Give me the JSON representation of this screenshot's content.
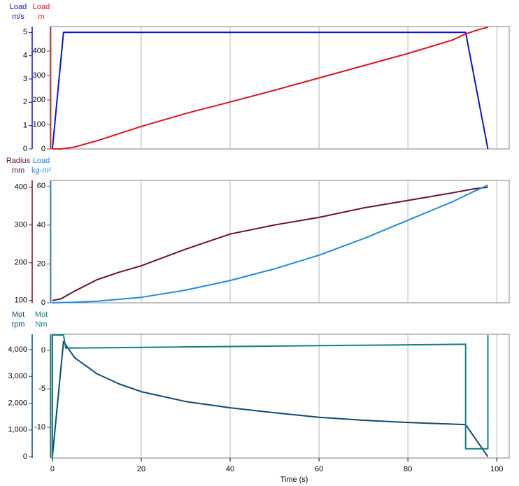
{
  "chart_data": [
    {
      "type": "line",
      "xlim": [
        -0.3,
        102.8
      ],
      "xticks": [
        0,
        20,
        40,
        60,
        80,
        100
      ],
      "grid": true,
      "ylabel": [
        "Load",
        "m/s"
      ],
      "ylim": [
        0,
        5.25
      ],
      "yticks": [
        0,
        1,
        2,
        3,
        4,
        5
      ],
      "y2label": [
        "Load",
        "m"
      ],
      "y2lim": [
        0,
        500
      ],
      "y2ticks": [
        0,
        100,
        200,
        300,
        400
      ],
      "series": [
        {
          "color": "#0a14d6",
          "axis": "y",
          "x": [
            0,
            2.5,
            93,
            98
          ],
          "values": [
            0,
            5,
            5,
            0
          ]
        },
        {
          "color": "#e0141e",
          "axis": "y2",
          "x": [
            0,
            2,
            5,
            10,
            20,
            30,
            40,
            50,
            60,
            70,
            80,
            90,
            93,
            96,
            98
          ],
          "values": [
            0,
            0,
            8,
            33,
            92,
            145,
            192,
            240,
            290,
            340,
            390,
            445,
            470,
            488,
            497
          ]
        }
      ]
    },
    {
      "type": "line",
      "xlim": [
        -0.3,
        102.8
      ],
      "xticks": [
        0,
        20,
        40,
        60,
        80,
        100
      ],
      "grid": true,
      "ylabel": [
        "Radius",
        "mm"
      ],
      "ylim": [
        94,
        418
      ],
      "yticks": [
        100,
        200,
        300,
        400
      ],
      "y2label": [
        "Load",
        "kg-m²"
      ],
      "y2lim": [
        0,
        63
      ],
      "y2ticks": [
        0,
        20,
        40,
        60
      ],
      "series": [
        {
          "color": "#6b0f3f",
          "axis": "y",
          "x": [
            0,
            2,
            5,
            10,
            15,
            20,
            30,
            40,
            50,
            60,
            70,
            80,
            90,
            95,
            98
          ],
          "values": [
            100,
            105,
            125,
            155,
            175,
            192,
            236,
            276,
            300,
            320,
            345,
            365,
            385,
            396,
            400
          ]
        },
        {
          "color": "#1e8ce0",
          "axis": "y2",
          "x": [
            0,
            5,
            10,
            20,
            30,
            40,
            50,
            60,
            70,
            80,
            90,
            95,
            98
          ],
          "values": [
            0,
            0.3,
            0.8,
            2.8,
            6.5,
            11.5,
            17.5,
            24.5,
            33,
            42.5,
            52,
            57.5,
            60.5
          ]
        }
      ]
    },
    {
      "type": "line",
      "xlim": [
        -0.3,
        102.8
      ],
      "xticks": [
        0,
        20,
        40,
        60,
        80,
        100
      ],
      "grid": true,
      "xlabel": "Time (s)",
      "ylabel": [
        "Mot",
        "rpm"
      ],
      "ylim": [
        -50,
        4575
      ],
      "yticks": [
        0,
        {
          "value": 1000,
          "label": "1,000"
        },
        {
          "value": 2000,
          "label": "2,000"
        },
        {
          "value": 3000,
          "label": "3,000"
        },
        {
          "value": 4000,
          "label": "4,000"
        }
      ],
      "y2label": [
        "Mot",
        "Nm"
      ],
      "y2lim": [
        -14,
        2.1
      ],
      "y2ticks": [
        -10,
        -5,
        0
      ],
      "series": [
        {
          "color": "#0e4a78",
          "axis": "y",
          "x": [
            0,
            2.5,
            5,
            10,
            15,
            20,
            30,
            40,
            50,
            60,
            70,
            80,
            93,
            98
          ],
          "values": [
            0,
            4300,
            3700,
            3100,
            2720,
            2430,
            2060,
            1830,
            1640,
            1470,
            1360,
            1280,
            1200,
            0
          ]
        },
        {
          "color": "#118080",
          "axis": "y2",
          "x": [
            0,
            0,
            2.5,
            3,
            93,
            93,
            98,
            98
          ],
          "values": [
            -14,
            2,
            2,
            0.3,
            0.8,
            -12.8,
            -12.8,
            2
          ]
        }
      ]
    }
  ]
}
